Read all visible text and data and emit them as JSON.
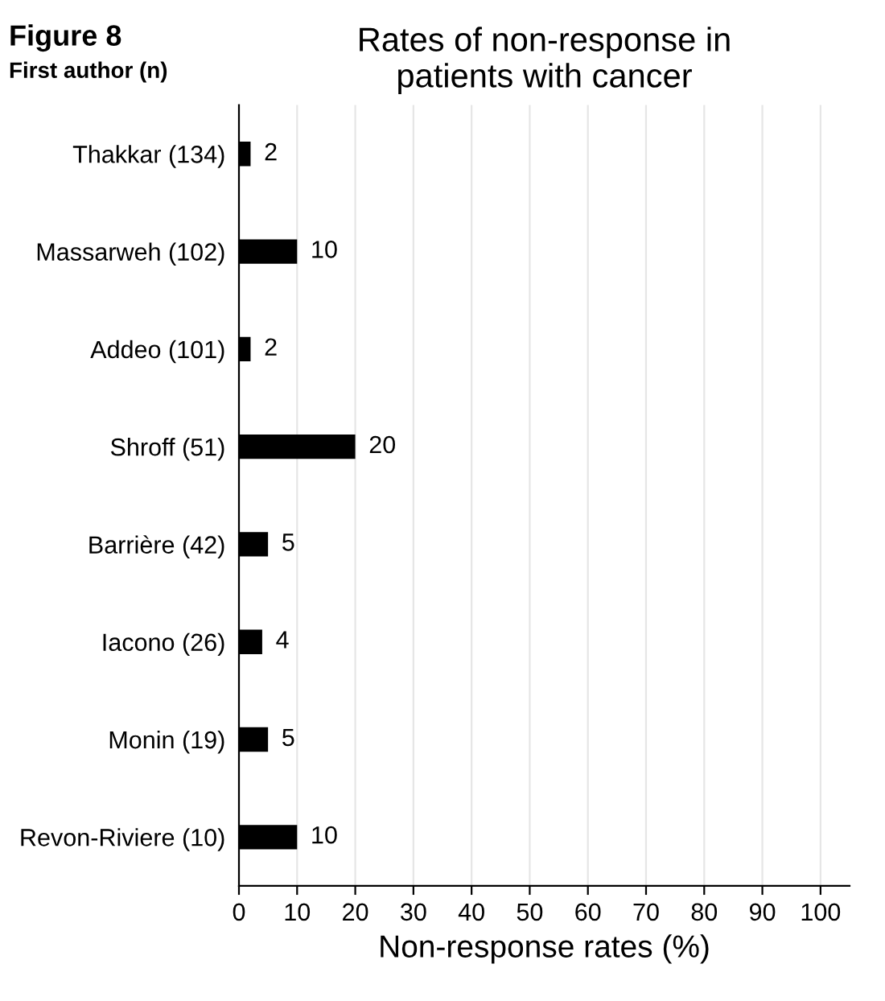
{
  "chart_data": {
    "type": "bar",
    "orientation": "horizontal",
    "title": "Rates of non-response in\npatients with cancer",
    "xlabel": "Non-response rates (%)",
    "annotations": [
      "Figure 8",
      "First author (n)"
    ],
    "categories": [
      "Thakkar (134)",
      "Massarweh (102)",
      "Addeo (101)",
      "Shroff (51)",
      "Barrière (42)",
      "Iacono (26)",
      "Monin (19)",
      "Revon-Riviere (10)"
    ],
    "values": [
      2,
      10,
      2,
      20,
      5,
      4,
      5,
      10
    ],
    "color": "#000000",
    "data_labels": true,
    "xlim": [
      0,
      105
    ],
    "xticks": [
      0,
      10,
      20,
      30,
      40,
      50,
      60,
      70,
      80,
      90,
      100
    ],
    "grid": "x",
    "legend": false
  }
}
